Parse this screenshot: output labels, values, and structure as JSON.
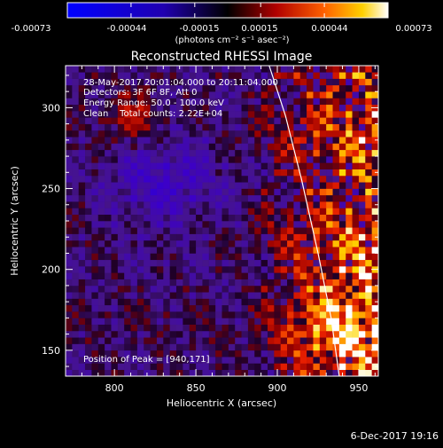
{
  "colorbar": {
    "tick_labels": [
      "-0.00073",
      "-0.00044",
      "-0.00015",
      "0.00015",
      "0.00044",
      "0.00073"
    ],
    "ticks": [
      -0.00073,
      -0.00044,
      -0.00015,
      0.00015,
      0.00044,
      0.00073
    ],
    "range": [
      -0.00073,
      0.00073
    ],
    "units_label": "(photons cm⁻² s⁻¹ asec⁻²)"
  },
  "footer": {
    "timestamp": "6-Dec-2017 19:16"
  },
  "chart_data": {
    "type": "heatmap",
    "title": "Reconstructed RHESSI Image",
    "xlabel": "Heliocentric X (arcsec)",
    "ylabel": "Heliocentric Y (arcsec)",
    "xlim": [
      770,
      962
    ],
    "ylim": [
      134,
      326
    ],
    "x_ticks": [
      800,
      850,
      900,
      950
    ],
    "y_ticks": [
      150,
      200,
      250,
      300
    ],
    "annotations": [
      "28-May-2017 20:01:04.000 to 20:11:04.000",
      "Detectors: 3F 6F 8F, Att 0",
      "Energy Range: 50.0 - 100.0 keV",
      "Clean    Total counts: 2.22E+04"
    ],
    "peak_label": "Position of Peak = [940,171]",
    "peak_position": [
      940,
      171
    ],
    "limb_curve": {
      "x": [
        895,
        905,
        915,
        925,
        933,
        938
      ],
      "y": [
        326,
        295,
        255,
        210,
        170,
        134
      ]
    },
    "colors": {
      "negative": "#1010ff",
      "zero": "#000000",
      "positive": "#ffffff"
    }
  }
}
